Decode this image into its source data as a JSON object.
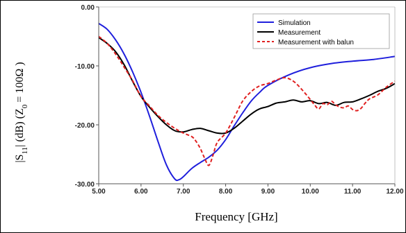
{
  "chart_data": {
    "type": "line",
    "title": "",
    "xlabel": "Frequency [GHz]",
    "ylabel": "|S11| (dB) (Z0 = 100Ω )",
    "ylabel_parts": {
      "a": "|S",
      "a_sub": "11",
      "b": "| (dB) (Z",
      "b_sub": "0",
      "c": "= 100Ω )"
    },
    "xlim": [
      5.0,
      12.0
    ],
    "ylim": [
      -30.0,
      0.0
    ],
    "x_ticks": [
      "5.00",
      "6.00",
      "7.00",
      "8.00",
      "9.00",
      "10.00",
      "11.00",
      "12.00"
    ],
    "y_ticks": [
      "0.00",
      "-10.00",
      "-20.00",
      "-30.00"
    ],
    "grid": false,
    "legend_position": "top-right",
    "series": [
      {
        "name": "Simulation",
        "color": "#1f1fdc",
        "style": "solid",
        "x": [
          5.0,
          5.2,
          5.4,
          5.6,
          5.8,
          6.0,
          6.2,
          6.4,
          6.6,
          6.8,
          6.9,
          7.0,
          7.2,
          7.4,
          7.6,
          7.8,
          8.0,
          8.2,
          8.4,
          8.6,
          8.8,
          9.0,
          9.5,
          10.0,
          10.5,
          11.0,
          11.5,
          12.0
        ],
        "y": [
          -2.8,
          -3.8,
          -5.6,
          -8.0,
          -11.0,
          -14.5,
          -18.5,
          -22.8,
          -26.8,
          -29.2,
          -29.3,
          -28.8,
          -27.4,
          -26.4,
          -25.5,
          -24.3,
          -22.5,
          -20.2,
          -18.0,
          -16.0,
          -14.5,
          -13.3,
          -11.5,
          -10.3,
          -9.6,
          -9.2,
          -8.9,
          -8.4
        ]
      },
      {
        "name": "Measurement",
        "color": "#000000",
        "style": "solid",
        "x": [
          5.0,
          5.2,
          5.4,
          5.6,
          5.8,
          6.0,
          6.2,
          6.4,
          6.6,
          6.8,
          7.0,
          7.2,
          7.4,
          7.6,
          7.8,
          8.0,
          8.2,
          8.4,
          8.6,
          8.8,
          9.0,
          9.2,
          9.4,
          9.6,
          9.8,
          10.0,
          10.2,
          10.4,
          10.6,
          10.8,
          11.0,
          11.2,
          11.4,
          11.6,
          11.8,
          12.0
        ],
        "y": [
          -5.2,
          -6.2,
          -7.6,
          -9.8,
          -12.6,
          -15.2,
          -17.0,
          -18.6,
          -20.0,
          -21.0,
          -21.2,
          -20.8,
          -20.6,
          -21.0,
          -21.4,
          -21.4,
          -20.6,
          -19.4,
          -18.2,
          -17.3,
          -16.9,
          -16.3,
          -16.1,
          -15.8,
          -16.1,
          -15.9,
          -16.4,
          -16.2,
          -16.7,
          -16.2,
          -16.1,
          -15.6,
          -15.0,
          -14.3,
          -13.8,
          -13.0
        ]
      },
      {
        "name": "Measurement with balun",
        "color": "#e02020",
        "style": "dashed",
        "x": [
          5.0,
          5.2,
          5.4,
          5.6,
          5.8,
          6.0,
          6.2,
          6.4,
          6.6,
          6.8,
          7.0,
          7.2,
          7.3,
          7.4,
          7.5,
          7.6,
          7.7,
          7.8,
          8.0,
          8.2,
          8.4,
          8.6,
          8.8,
          9.0,
          9.2,
          9.4,
          9.6,
          9.8,
          10.0,
          10.1,
          10.2,
          10.3,
          10.4,
          10.5,
          10.6,
          10.7,
          10.8,
          10.9,
          11.0,
          11.1,
          11.2,
          11.3,
          11.4,
          11.6,
          11.8,
          12.0
        ],
        "y": [
          -5.0,
          -6.2,
          -8.0,
          -10.2,
          -12.5,
          -15.2,
          -16.8,
          -18.4,
          -19.6,
          -20.6,
          -21.4,
          -22.0,
          -22.8,
          -24.0,
          -25.6,
          -26.9,
          -25.2,
          -23.0,
          -21.4,
          -18.8,
          -16.0,
          -14.4,
          -13.4,
          -13.0,
          -12.4,
          -12.0,
          -12.6,
          -14.0,
          -15.7,
          -16.6,
          -17.3,
          -16.4,
          -16.6,
          -16.0,
          -16.6,
          -17.0,
          -17.1,
          -16.8,
          -17.4,
          -17.6,
          -17.2,
          -16.3,
          -15.6,
          -14.9,
          -13.6,
          -12.6
        ]
      }
    ]
  }
}
